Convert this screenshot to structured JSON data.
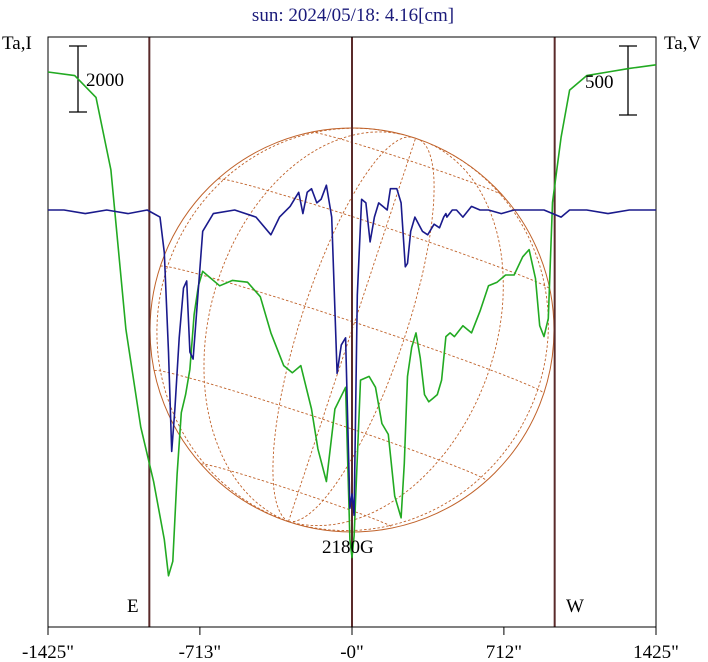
{
  "chart_data": {
    "type": "line",
    "title": "sun: 2024/05/18: 4.16[cm]",
    "ylabel_left": "Ta,I",
    "ylabel_right": "Ta,V",
    "scale_left": "2000",
    "scale_right": "500",
    "east_label": "E",
    "west_label": "W",
    "annotation": "2180G",
    "xlim": [
      -1425,
      1425
    ],
    "x_ticks": [
      {
        "value": -1425,
        "label": "-1425\""
      },
      {
        "value": -713,
        "label": "-713\""
      },
      {
        "value": 0,
        "label": "-0\""
      },
      {
        "value": 712,
        "label": "712\""
      },
      {
        "value": 1425,
        "label": "1425\""
      }
    ],
    "limb_arcsec": 950,
    "colors": {
      "intensity": "#22aa22",
      "polarization": "#1a1a8c",
      "limb": "#5a2a2a",
      "globe": "#c0622a",
      "frame": "#000000"
    },
    "series": [
      {
        "key": "intensity",
        "points": [
          [
            -1425,
            1410
          ],
          [
            -1300,
            1400
          ],
          [
            -1200,
            1340
          ],
          [
            -1130,
            1140
          ],
          [
            -1060,
            700
          ],
          [
            -990,
            430
          ],
          [
            -930,
            280
          ],
          [
            -880,
            120
          ],
          [
            -860,
            20
          ],
          [
            -840,
            60
          ],
          [
            -820,
            300
          ],
          [
            -800,
            470
          ],
          [
            -780,
            520
          ],
          [
            -760,
            590
          ],
          [
            -740,
            740
          ],
          [
            -720,
            820
          ],
          [
            -700,
            860
          ],
          [
            -680,
            850
          ],
          [
            -620,
            820
          ],
          [
            -560,
            835
          ],
          [
            -490,
            830
          ],
          [
            -430,
            790
          ],
          [
            -380,
            690
          ],
          [
            -320,
            600
          ],
          [
            -280,
            580
          ],
          [
            -240,
            600
          ],
          [
            -190,
            480
          ],
          [
            -160,
            370
          ],
          [
            -120,
            280
          ],
          [
            -80,
            480
          ],
          [
            -30,
            540
          ],
          [
            -10,
            120
          ],
          [
            0,
            70
          ],
          [
            10,
            130
          ],
          [
            40,
            560
          ],
          [
            80,
            570
          ],
          [
            110,
            540
          ],
          [
            140,
            440
          ],
          [
            170,
            410
          ],
          [
            200,
            240
          ],
          [
            230,
            180
          ],
          [
            245,
            330
          ],
          [
            260,
            570
          ],
          [
            280,
            650
          ],
          [
            300,
            690
          ],
          [
            320,
            620
          ],
          [
            340,
            520
          ],
          [
            360,
            500
          ],
          [
            380,
            510
          ],
          [
            400,
            520
          ],
          [
            420,
            560
          ],
          [
            440,
            680
          ],
          [
            460,
            690
          ],
          [
            480,
            680
          ],
          [
            520,
            710
          ],
          [
            560,
            690
          ],
          [
            600,
            750
          ],
          [
            640,
            820
          ],
          [
            680,
            830
          ],
          [
            720,
            850
          ],
          [
            760,
            850
          ],
          [
            800,
            900
          ],
          [
            830,
            920
          ],
          [
            860,
            840
          ],
          [
            880,
            710
          ],
          [
            900,
            680
          ],
          [
            920,
            730
          ],
          [
            940,
            1050
          ],
          [
            980,
            1230
          ],
          [
            1020,
            1360
          ],
          [
            1100,
            1400
          ],
          [
            1200,
            1410
          ],
          [
            1300,
            1420
          ],
          [
            1425,
            1430
          ]
        ]
      },
      {
        "key": "polarization",
        "points": [
          [
            -1425,
            0
          ],
          [
            -1350,
            0
          ],
          [
            -1250,
            5
          ],
          [
            -1150,
            0
          ],
          [
            -1050,
            5
          ],
          [
            -960,
            0
          ],
          [
            -900,
            10
          ],
          [
            -880,
            60
          ],
          [
            -860,
            200
          ],
          [
            -845,
            340
          ],
          [
            -830,
            280
          ],
          [
            -810,
            180
          ],
          [
            -790,
            110
          ],
          [
            -775,
            100
          ],
          [
            -760,
            200
          ],
          [
            -745,
            210
          ],
          [
            -730,
            150
          ],
          [
            -715,
            90
          ],
          [
            -700,
            30
          ],
          [
            -650,
            5
          ],
          [
            -550,
            0
          ],
          [
            -450,
            10
          ],
          [
            -380,
            35
          ],
          [
            -340,
            10
          ],
          [
            -290,
            -5
          ],
          [
            -250,
            -25
          ],
          [
            -230,
            5
          ],
          [
            -210,
            -25
          ],
          [
            -190,
            -30
          ],
          [
            -165,
            -10
          ],
          [
            -145,
            -15
          ],
          [
            -120,
            -35
          ],
          [
            -95,
            10
          ],
          [
            -70,
            230
          ],
          [
            -50,
            190
          ],
          [
            -30,
            180
          ],
          [
            -10,
            420
          ],
          [
            0,
            400
          ],
          [
            10,
            430
          ],
          [
            25,
            120
          ],
          [
            45,
            -15
          ],
          [
            65,
            -10
          ],
          [
            85,
            45
          ],
          [
            105,
            10
          ],
          [
            125,
            -10
          ],
          [
            145,
            -5
          ],
          [
            165,
            0
          ],
          [
            180,
            -30
          ],
          [
            210,
            -30
          ],
          [
            230,
            -10
          ],
          [
            250,
            80
          ],
          [
            260,
            75
          ],
          [
            275,
            30
          ],
          [
            295,
            10
          ],
          [
            330,
            30
          ],
          [
            355,
            35
          ],
          [
            385,
            20
          ],
          [
            410,
            25
          ],
          [
            430,
            10
          ],
          [
            440,
            5
          ],
          [
            445,
            10
          ],
          [
            470,
            0
          ],
          [
            490,
            0
          ],
          [
            520,
            10
          ],
          [
            560,
            -5
          ],
          [
            600,
            0
          ],
          [
            640,
            0
          ],
          [
            700,
            5
          ],
          [
            760,
            0
          ],
          [
            820,
            0
          ],
          [
            900,
            0
          ],
          [
            980,
            10
          ],
          [
            1020,
            0
          ],
          [
            1100,
            0
          ],
          [
            1200,
            5
          ],
          [
            1300,
            0
          ],
          [
            1425,
            0
          ]
        ]
      }
    ]
  }
}
